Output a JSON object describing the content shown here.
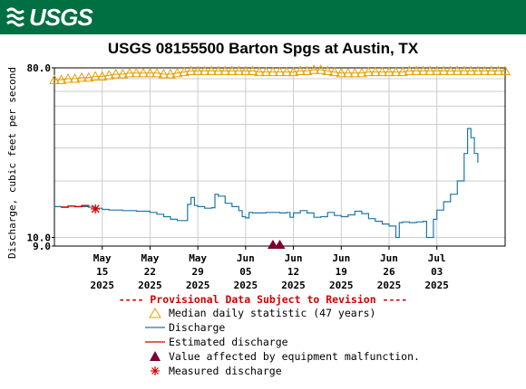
{
  "banner": {
    "agency": "USGS"
  },
  "title": "USGS 08155500 Barton Spgs at Austin, TX",
  "provisional_notice": "---- Provisional Data Subject to Revision ----",
  "legend": [
    {
      "symbol": "orange-triangle",
      "label": "Median daily statistic (47 years)"
    },
    {
      "symbol": "teal-line",
      "label": "Discharge"
    },
    {
      "symbol": "red-line",
      "label": "Estimated discharge"
    },
    {
      "symbol": "maroon-triangle",
      "label": "Value affected by equipment malfunction."
    },
    {
      "symbol": "red-asterisk",
      "label": "Measured discharge"
    }
  ],
  "colors": {
    "banner": "#006f41",
    "median": "#e8a000",
    "discharge": "#1f77a8",
    "estimated": "#d40000",
    "malfunction": "#7a0030",
    "measured": "#d40000",
    "grid": "#cccccc"
  },
  "chart_data": {
    "type": "line",
    "title": "USGS 08155500 Barton Spgs at Austin, TX",
    "ylabel": "Discharge, cubic feet per second",
    "y_scale": "log",
    "ylim": [
      9.0,
      80.0
    ],
    "y_ticks": [
      {
        "value": 80.0,
        "label": "80.0"
      },
      {
        "value": 10.0,
        "label": "10.0"
      },
      {
        "value": 9.0,
        "label": "9.0"
      }
    ],
    "xlim": [
      "2025-05-08",
      "2025-07-13"
    ],
    "x_ticks": [
      {
        "date": "2025-05-15",
        "lines": [
          "May",
          "15",
          "2025"
        ]
      },
      {
        "date": "2025-05-22",
        "lines": [
          "May",
          "22",
          "2025"
        ]
      },
      {
        "date": "2025-05-29",
        "lines": [
          "May",
          "29",
          "2025"
        ]
      },
      {
        "date": "2025-06-05",
        "lines": [
          "Jun",
          "05",
          "2025"
        ]
      },
      {
        "date": "2025-06-12",
        "lines": [
          "Jun",
          "12",
          "2025"
        ]
      },
      {
        "date": "2025-06-19",
        "lines": [
          "Jun",
          "19",
          "2025"
        ]
      },
      {
        "date": "2025-06-26",
        "lines": [
          "Jun",
          "26",
          "2025"
        ]
      },
      {
        "date": "2025-07-03",
        "lines": [
          "Jul",
          "03",
          "2025"
        ]
      }
    ],
    "grid": true,
    "series": [
      {
        "name": "Median daily statistic (47 years)",
        "kind": "median",
        "points": [
          [
            "2025-05-08",
            69
          ],
          [
            "2025-05-09",
            69
          ],
          [
            "2025-05-10",
            70
          ],
          [
            "2025-05-11",
            70
          ],
          [
            "2025-05-12",
            71
          ],
          [
            "2025-05-13",
            71
          ],
          [
            "2025-05-14",
            72
          ],
          [
            "2025-05-15",
            72
          ],
          [
            "2025-05-16",
            73
          ],
          [
            "2025-05-17",
            74
          ],
          [
            "2025-05-18",
            74
          ],
          [
            "2025-05-19",
            75
          ],
          [
            "2025-05-20",
            75
          ],
          [
            "2025-05-21",
            75
          ],
          [
            "2025-05-22",
            75
          ],
          [
            "2025-05-23",
            75
          ],
          [
            "2025-05-24",
            74
          ],
          [
            "2025-05-25",
            74
          ],
          [
            "2025-05-26",
            75
          ],
          [
            "2025-05-27",
            76
          ],
          [
            "2025-05-28",
            77
          ],
          [
            "2025-05-29",
            77
          ],
          [
            "2025-05-30",
            77
          ],
          [
            "2025-05-31",
            77
          ],
          [
            "2025-06-01",
            77
          ],
          [
            "2025-06-02",
            77
          ],
          [
            "2025-06-03",
            77
          ],
          [
            "2025-06-04",
            77
          ],
          [
            "2025-06-05",
            77
          ],
          [
            "2025-06-06",
            77
          ],
          [
            "2025-06-07",
            76
          ],
          [
            "2025-06-08",
            76
          ],
          [
            "2025-06-09",
            76
          ],
          [
            "2025-06-10",
            76
          ],
          [
            "2025-06-11",
            76
          ],
          [
            "2025-06-12",
            76
          ],
          [
            "2025-06-13",
            77
          ],
          [
            "2025-06-14",
            77
          ],
          [
            "2025-06-15",
            78
          ],
          [
            "2025-06-16",
            78
          ],
          [
            "2025-06-17",
            77
          ],
          [
            "2025-06-18",
            76
          ],
          [
            "2025-06-19",
            75
          ],
          [
            "2025-06-20",
            75
          ],
          [
            "2025-06-21",
            75
          ],
          [
            "2025-06-22",
            75
          ],
          [
            "2025-06-23",
            76
          ],
          [
            "2025-06-24",
            76
          ],
          [
            "2025-06-25",
            76
          ],
          [
            "2025-06-26",
            76
          ],
          [
            "2025-06-27",
            76
          ],
          [
            "2025-06-28",
            76
          ],
          [
            "2025-06-29",
            77
          ],
          [
            "2025-06-30",
            77
          ],
          [
            "2025-07-01",
            77
          ],
          [
            "2025-07-02",
            77
          ],
          [
            "2025-07-03",
            77
          ],
          [
            "2025-07-04",
            77
          ],
          [
            "2025-07-05",
            77
          ],
          [
            "2025-07-06",
            77
          ],
          [
            "2025-07-07",
            77
          ],
          [
            "2025-07-08",
            77
          ],
          [
            "2025-07-09",
            77
          ],
          [
            "2025-07-10",
            77
          ],
          [
            "2025-07-11",
            77
          ],
          [
            "2025-07-12",
            77
          ],
          [
            "2025-07-13",
            77
          ]
        ]
      },
      {
        "name": "Discharge",
        "kind": "discharge",
        "points": [
          [
            "2025-05-08",
            14.6
          ],
          [
            "2025-05-09",
            14.5
          ],
          [
            "2025-05-10",
            14.7
          ],
          [
            "2025-05-11",
            14.6
          ],
          [
            "2025-05-13",
            14.5
          ],
          [
            "2025-05-14",
            14.3
          ],
          [
            "2025-05-15",
            14.1
          ],
          [
            "2025-05-16",
            14.0
          ],
          [
            "2025-05-18",
            13.9
          ],
          [
            "2025-05-20",
            13.8
          ],
          [
            "2025-05-22",
            13.6
          ],
          [
            "2025-05-23",
            13.3
          ],
          [
            "2025-05-24",
            12.9
          ],
          [
            "2025-05-25",
            12.5
          ],
          [
            "2025-05-26",
            12.3
          ],
          [
            "2025-05-27",
            12.3
          ],
          [
            "2025-05-27.5",
            15.0
          ],
          [
            "2025-05-28",
            16.3
          ],
          [
            "2025-05-28.5",
            14.8
          ],
          [
            "2025-05-29",
            14.6
          ],
          [
            "2025-05-30",
            14.3
          ],
          [
            "2025-05-31",
            14.4
          ],
          [
            "2025-05-31.5",
            17.0
          ],
          [
            "2025-06-01",
            16.6
          ],
          [
            "2025-06-02",
            15.2
          ],
          [
            "2025-06-03",
            14.6
          ],
          [
            "2025-06-04",
            13.9
          ],
          [
            "2025-06-04.5",
            12.9
          ],
          [
            "2025-06-05",
            12.7
          ],
          [
            "2025-06-05.5",
            13.6
          ],
          [
            "2025-06-06",
            13.5
          ],
          [
            "2025-06-08",
            13.6
          ],
          [
            "2025-06-10",
            13.5
          ],
          [
            "2025-06-11",
            13.6
          ],
          [
            "2025-06-11.5",
            12.8
          ],
          [
            "2025-06-12",
            13.5
          ],
          [
            "2025-06-13",
            13.9
          ],
          [
            "2025-06-14",
            13.5
          ],
          [
            "2025-06-15",
            12.8
          ],
          [
            "2025-06-16",
            12.9
          ],
          [
            "2025-06-17",
            13.6
          ],
          [
            "2025-06-18",
            13.1
          ],
          [
            "2025-06-19",
            12.9
          ],
          [
            "2025-06-20",
            13.2
          ],
          [
            "2025-06-21",
            13.8
          ],
          [
            "2025-06-22",
            13.4
          ],
          [
            "2025-06-23",
            12.6
          ],
          [
            "2025-06-24",
            12.2
          ],
          [
            "2025-06-25",
            11.8
          ],
          [
            "2025-06-26",
            11.5
          ],
          [
            "2025-06-27",
            10.0
          ],
          [
            "2025-06-27.5",
            12.0
          ],
          [
            "2025-06-28",
            12.1
          ],
          [
            "2025-06-29",
            12.0
          ],
          [
            "2025-06-30",
            12.1
          ],
          [
            "2025-07-01",
            12.2
          ],
          [
            "2025-07-01.5",
            10.0
          ],
          [
            "2025-07-02",
            10.0
          ],
          [
            "2025-07-02.5",
            12.5
          ],
          [
            "2025-07-03",
            14.0
          ],
          [
            "2025-07-04",
            15.5
          ],
          [
            "2025-07-05",
            17.0
          ],
          [
            "2025-07-06",
            20.0
          ],
          [
            "2025-07-07",
            28.0
          ],
          [
            "2025-07-07.5",
            38.0
          ],
          [
            "2025-07-08",
            34.0
          ],
          [
            "2025-07-08.5",
            28.0
          ],
          [
            "2025-07-09",
            25.0
          ]
        ]
      },
      {
        "name": "Estimated discharge",
        "kind": "estimated",
        "points": [
          [
            "2025-05-09",
            14.5
          ],
          [
            "2025-05-10",
            14.7
          ],
          [
            "2025-05-11",
            14.6
          ],
          [
            "2025-05-12",
            14.8
          ],
          [
            "2025-05-13",
            14.6
          ]
        ]
      }
    ],
    "markers": [
      {
        "name": "Measured discharge",
        "kind": "measured",
        "date": "2025-05-14",
        "value": 14.2
      },
      {
        "name": "Value affected by equipment malfunction.",
        "kind": "malfunction",
        "date": "2025-06-09",
        "value": 9.0
      },
      {
        "name": "Value affected by equipment malfunction.",
        "kind": "malfunction",
        "date": "2025-06-10",
        "value": 9.0
      }
    ]
  }
}
